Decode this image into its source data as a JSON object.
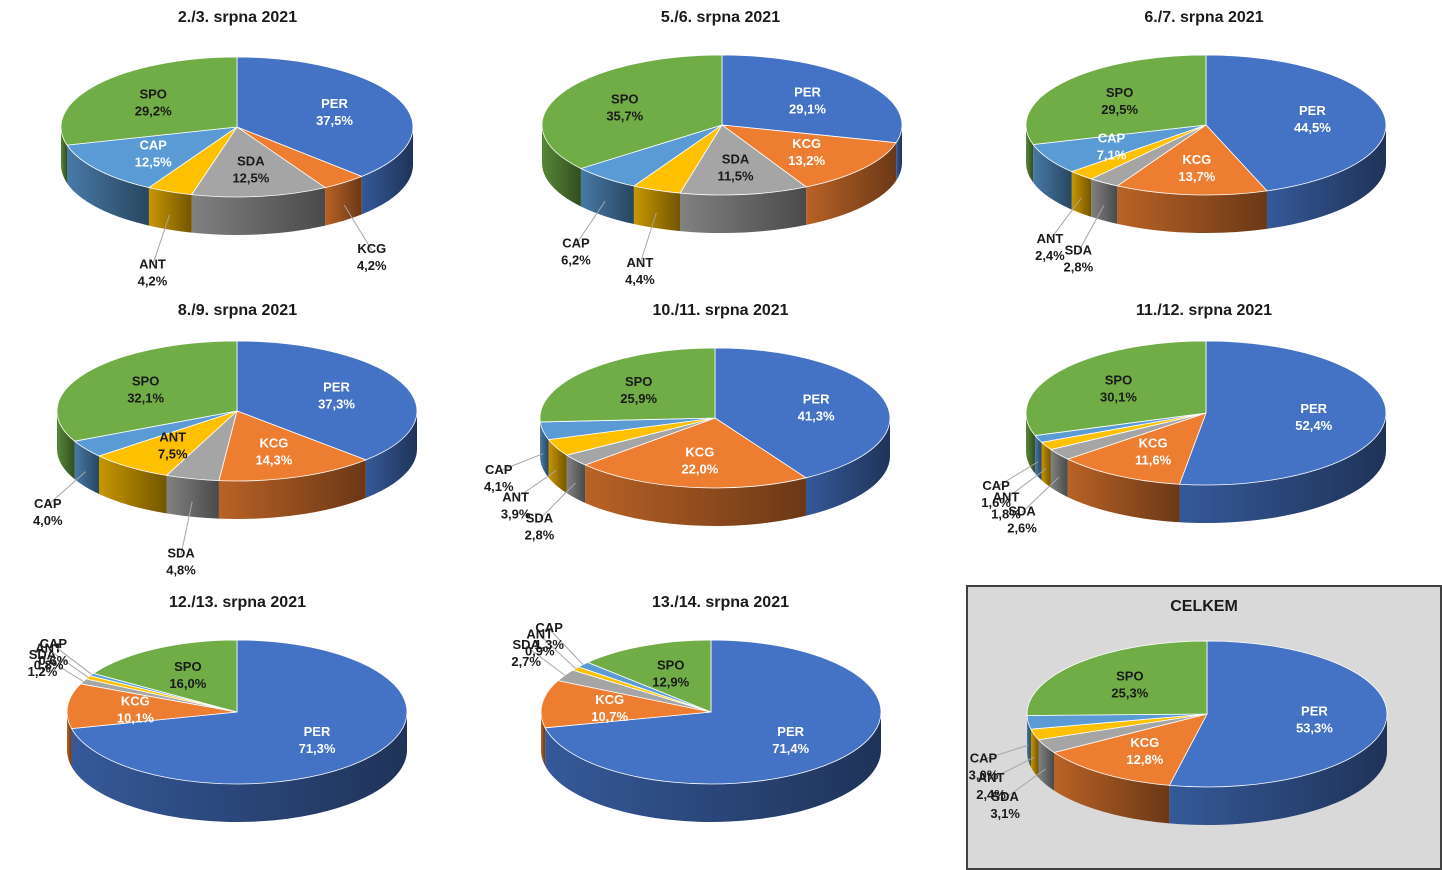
{
  "colors": {
    "PER": "#4472C4",
    "KCG": "#ED7D31",
    "SDA": "#A5A5A5",
    "ANT": "#FFC000",
    "CAP": "#5B9BD5",
    "SPO": "#70AD47"
  },
  "chart_data": [
    {
      "type": "pie",
      "title": "2./3. srpna 2021",
      "series": [
        {
          "values": [
            {
              "label": "PER",
              "value": 37.5,
              "text": "37,5%"
            },
            {
              "label": "KCG",
              "value": 4.2,
              "text": "4,2%"
            },
            {
              "label": "SDA",
              "value": 12.5,
              "text": "12,5%"
            },
            {
              "label": "ANT",
              "value": 4.2,
              "text": "4,2%"
            },
            {
              "label": "CAP",
              "value": 12.5,
              "text": "12,5%"
            },
            {
              "label": "SPO",
              "value": 29.2,
              "text": "29,2%"
            }
          ]
        }
      ]
    },
    {
      "type": "pie",
      "title": "5./6. srpna 2021",
      "series": [
        {
          "values": [
            {
              "label": "PER",
              "value": 29.1,
              "text": "29,1%"
            },
            {
              "label": "KCG",
              "value": 13.2,
              "text": "13,2%"
            },
            {
              "label": "SDA",
              "value": 11.5,
              "text": "11,5%"
            },
            {
              "label": "ANT",
              "value": 4.4,
              "text": "4,4%"
            },
            {
              "label": "CAP",
              "value": 6.2,
              "text": "6,2%"
            },
            {
              "label": "SPO",
              "value": 35.7,
              "text": "35,7%"
            }
          ]
        }
      ]
    },
    {
      "type": "pie",
      "title": "6./7. srpna 2021",
      "series": [
        {
          "values": [
            {
              "label": "PER",
              "value": 44.5,
              "text": "44,5%"
            },
            {
              "label": "KCG",
              "value": 13.7,
              "text": "13,7%"
            },
            {
              "label": "SDA",
              "value": 2.8,
              "text": "2,8%"
            },
            {
              "label": "ANT",
              "value": 2.4,
              "text": "2,4%"
            },
            {
              "label": "CAP",
              "value": 7.1,
              "text": "7,1%"
            },
            {
              "label": "SPO",
              "value": 29.5,
              "text": "29,5%"
            }
          ]
        }
      ]
    },
    {
      "type": "pie",
      "title": "8./9. srpna 2021",
      "series": [
        {
          "values": [
            {
              "label": "PER",
              "value": 37.3,
              "text": "37,3%"
            },
            {
              "label": "KCG",
              "value": 14.3,
              "text": "14,3%"
            },
            {
              "label": "SDA",
              "value": 4.8,
              "text": "4,8%"
            },
            {
              "label": "ANT",
              "value": 7.5,
              "text": "7,5%"
            },
            {
              "label": "CAP",
              "value": 4.0,
              "text": "4,0%"
            },
            {
              "label": "SPO",
              "value": 32.1,
              "text": "32,1%"
            }
          ]
        }
      ]
    },
    {
      "type": "pie",
      "title": "10./11. srpna 2021",
      "series": [
        {
          "values": [
            {
              "label": "PER",
              "value": 41.3,
              "text": "41,3%"
            },
            {
              "label": "KCG",
              "value": 22.0,
              "text": "22,0%"
            },
            {
              "label": "SDA",
              "value": 2.8,
              "text": "2,8%"
            },
            {
              "label": "ANT",
              "value": 3.9,
              "text": "3,9%"
            },
            {
              "label": "CAP",
              "value": 4.1,
              "text": "4,1%"
            },
            {
              "label": "SPO",
              "value": 25.9,
              "text": "25,9%"
            }
          ]
        }
      ]
    },
    {
      "type": "pie",
      "title": "11./12. srpna 2021",
      "series": [
        {
          "values": [
            {
              "label": "PER",
              "value": 52.4,
              "text": "52,4%"
            },
            {
              "label": "KCG",
              "value": 11.6,
              "text": "11,6%"
            },
            {
              "label": "SDA",
              "value": 2.6,
              "text": "2,6%"
            },
            {
              "label": "ANT",
              "value": 1.8,
              "text": "1,8%"
            },
            {
              "label": "CAP",
              "value": 1.6,
              "text": "1,6%"
            },
            {
              "label": "SPO",
              "value": 30.1,
              "text": "30,1%"
            }
          ]
        }
      ]
    },
    {
      "type": "pie",
      "title": "12./13. srpna 2021",
      "series": [
        {
          "values": [
            {
              "label": "PER",
              "value": 71.3,
              "text": "71,3%"
            },
            {
              "label": "KCG",
              "value": 10.1,
              "text": "10,1%"
            },
            {
              "label": "SDA",
              "value": 1.2,
              "text": "1,2%"
            },
            {
              "label": "ANT",
              "value": 0.8,
              "text": "0,8%"
            },
            {
              "label": "CAP",
              "value": 0.6,
              "text": "0,6%"
            },
            {
              "label": "SPO",
              "value": 16.0,
              "text": "16,0%"
            }
          ]
        }
      ]
    },
    {
      "type": "pie",
      "title": "13./14. srpna 2021",
      "series": [
        {
          "values": [
            {
              "label": "PER",
              "value": 71.4,
              "text": "71,4%"
            },
            {
              "label": "KCG",
              "value": 10.7,
              "text": "10,7%"
            },
            {
              "label": "SDA",
              "value": 2.7,
              "text": "2,7%"
            },
            {
              "label": "ANT",
              "value": 0.9,
              "text": "0,9%"
            },
            {
              "label": "CAP",
              "value": 1.3,
              "text": "1,3%"
            },
            {
              "label": "SPO",
              "value": 12.9,
              "text": "12,9%"
            }
          ]
        }
      ]
    },
    {
      "type": "pie",
      "title": "CELKEM",
      "series": [
        {
          "values": [
            {
              "label": "PER",
              "value": 53.3,
              "text": "53,3%"
            },
            {
              "label": "KCG",
              "value": 12.8,
              "text": "12,8%"
            },
            {
              "label": "SDA",
              "value": 3.1,
              "text": "3,1%"
            },
            {
              "label": "ANT",
              "value": 2.4,
              "text": "2,4%"
            },
            {
              "label": "CAP",
              "value": 3.0,
              "text": "3,0%"
            },
            {
              "label": "SPO",
              "value": 25.3,
              "text": "25,3%"
            }
          ]
        }
      ]
    }
  ]
}
